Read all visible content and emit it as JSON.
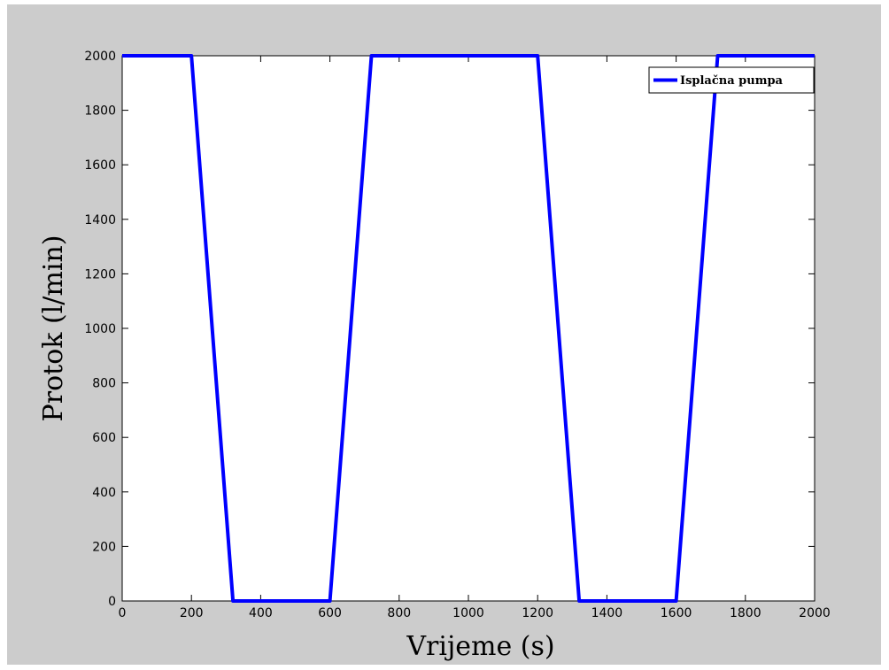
{
  "chart_data": {
    "type": "line",
    "title": "",
    "xlabel": "Vrijeme (s)",
    "ylabel": "Protok (l/min)",
    "xlim": [
      0,
      2000
    ],
    "ylim": [
      0,
      2000
    ],
    "xticks": [
      0,
      200,
      400,
      600,
      800,
      1000,
      1200,
      1400,
      1600,
      1800,
      2000
    ],
    "yticks": [
      0,
      200,
      400,
      600,
      800,
      1000,
      1200,
      1400,
      1600,
      1800,
      2000
    ],
    "xtick_labels": [
      "0",
      "200",
      "400",
      "600",
      "800",
      "1000",
      "1200",
      "1400",
      "1600",
      "1800",
      "2000"
    ],
    "ytick_labels": [
      "0",
      "200",
      "400",
      "600",
      "800",
      "1000",
      "1200",
      "1400",
      "1600",
      "1800",
      "2000"
    ],
    "grid": false,
    "legend_position": "top-right",
    "series": [
      {
        "name": "Isplačna pumpa",
        "color": "#0000ff",
        "x": [
          0,
          200,
          320,
          600,
          720,
          1200,
          1320,
          1600,
          1720,
          2000
        ],
        "y": [
          2000,
          2000,
          0,
          0,
          2000,
          2000,
          0,
          0,
          2000,
          2000
        ]
      }
    ]
  }
}
